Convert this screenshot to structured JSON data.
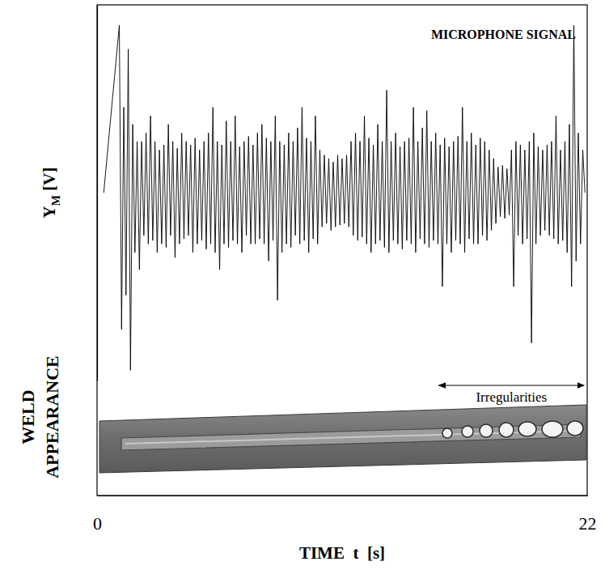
{
  "chart_data": {
    "type": "line",
    "title": "MICROPHONE SIGNAL",
    "x_label": "TIME  t  [s]",
    "y_label": "YM [V]",
    "side_label": "WELD APPEARANCE",
    "color": "#000000",
    "grid": false,
    "tick_labels": "x",
    "xlim": [
      0,
      22
    ],
    "xticks": [
      0,
      22
    ],
    "ylim": [
      -1.1,
      1.1
    ],
    "yticks": [],
    "annotations": [
      {
        "text": "Irregularities",
        "x_range": [
          15.3,
          21.9
        ]
      }
    ],
    "x": [
      0.3,
      1.0,
      1.1,
      1.2,
      1.3,
      1.4,
      1.5,
      1.6,
      1.7,
      1.8,
      1.9,
      2.0,
      2.1,
      2.2,
      2.3,
      2.4,
      2.5,
      2.6,
      2.7,
      2.8,
      2.9,
      3.0,
      3.1,
      3.2,
      3.3,
      3.4,
      3.5,
      3.6,
      3.7,
      3.8,
      3.9,
      4.0,
      4.1,
      4.2,
      4.3,
      4.4,
      4.5,
      4.6,
      4.7,
      4.8,
      4.9,
      5.0,
      5.1,
      5.2,
      5.3,
      5.4,
      5.5,
      5.6,
      5.7,
      5.8,
      5.9,
      6.0,
      6.1,
      6.2,
      6.3,
      6.4,
      6.5,
      6.6,
      6.7,
      6.8,
      6.9,
      7.0,
      7.1,
      7.2,
      7.3,
      7.4,
      7.5,
      7.6,
      7.7,
      7.8,
      7.9,
      8.0,
      8.1,
      8.2,
      8.3,
      8.4,
      8.5,
      8.6,
      8.7,
      8.8,
      8.9,
      9.0,
      9.1,
      9.2,
      9.3,
      9.4,
      9.5,
      9.6,
      9.7,
      9.8,
      9.9,
      10.0,
      10.1,
      10.2,
      10.3,
      10.4,
      10.5,
      10.6,
      10.7,
      10.8,
      10.9,
      11.0,
      11.1,
      11.2,
      11.3,
      11.4,
      11.5,
      11.6,
      11.7,
      11.8,
      11.9,
      12.0,
      12.1,
      12.2,
      12.3,
      12.4,
      12.5,
      12.6,
      12.7,
      12.8,
      12.9,
      13.0,
      13.1,
      13.2,
      13.3,
      13.4,
      13.5,
      13.6,
      13.7,
      13.8,
      13.9,
      14.0,
      14.1,
      14.2,
      14.3,
      14.4,
      14.5,
      14.6,
      14.7,
      14.8,
      14.9,
      15.0,
      15.1,
      15.2,
      15.3,
      15.4,
      15.5,
      15.6,
      15.7,
      15.8,
      15.9,
      16.0,
      16.1,
      16.2,
      16.3,
      16.4,
      16.5,
      16.6,
      16.7,
      16.8,
      16.9,
      17.0,
      17.1,
      17.2,
      17.3,
      17.4,
      17.5,
      17.6,
      17.7,
      17.8,
      17.9,
      18.0,
      18.1,
      18.2,
      18.3,
      18.4,
      18.5,
      18.6,
      18.7,
      18.8,
      18.9,
      19.0,
      19.1,
      19.2,
      19.3,
      19.4,
      19.5,
      19.6,
      19.7,
      19.8,
      19.9,
      20.0,
      20.1,
      20.2,
      20.3,
      20.4,
      20.5,
      20.6,
      20.7,
      20.8,
      20.9,
      21.0,
      21.1,
      21.2,
      21.3,
      21.4,
      21.5,
      21.6,
      21.7,
      21.8,
      21.9
    ],
    "values": [
      0,
      0.98,
      -0.8,
      0.5,
      -0.6,
      0.84,
      -1.04,
      0.4,
      -0.35,
      0.3,
      -0.45,
      0.3,
      -0.25,
      0.35,
      -0.3,
      0.45,
      -0.28,
      0.3,
      -0.35,
      0.25,
      -0.3,
      0.28,
      -0.32,
      0.4,
      -0.25,
      0.3,
      -0.38,
      0.26,
      -0.3,
      0.35,
      -0.27,
      0.3,
      -0.25,
      0.28,
      -0.35,
      0.32,
      -0.3,
      0.25,
      -0.28,
      0.3,
      -0.33,
      0.35,
      -0.3,
      0.5,
      -0.35,
      0.3,
      -0.45,
      0.28,
      -0.3,
      0.42,
      -0.32,
      0.3,
      -0.28,
      0.45,
      -0.3,
      0.27,
      -0.35,
      0.3,
      -0.25,
      0.33,
      -0.3,
      0.28,
      -0.3,
      0.35,
      -0.27,
      0.4,
      -0.3,
      0.32,
      -0.4,
      0.3,
      -0.28,
      0.45,
      -0.63,
      0.3,
      -0.35,
      0.28,
      -0.3,
      0.35,
      -0.32,
      0.3,
      -0.25,
      0.38,
      -0.3,
      0.5,
      -0.28,
      0.32,
      -0.35,
      0.3,
      -0.27,
      0.45,
      -0.3,
      0.25,
      -0.2,
      0.22,
      -0.18,
      0.2,
      -0.22,
      0.18,
      -0.2,
      0.22,
      -0.19,
      0.2,
      -0.18,
      0.22,
      -0.2,
      0.3,
      -0.25,
      0.35,
      -0.28,
      0.3,
      -0.26,
      0.45,
      -0.3,
      0.32,
      -0.35,
      0.28,
      -0.3,
      0.4,
      -0.28,
      0.3,
      -0.32,
      0.6,
      -0.35,
      0.3,
      -0.28,
      0.35,
      -0.3,
      0.27,
      -0.33,
      0.3,
      -0.28,
      0.32,
      -0.3,
      0.5,
      -0.35,
      0.3,
      -0.27,
      0.38,
      -0.3,
      0.48,
      -0.32,
      0.3,
      -0.28,
      0.35,
      -0.3,
      0.28,
      -0.55,
      0.32,
      -0.3,
      0.27,
      -0.35,
      0.3,
      -0.28,
      0.33,
      -0.3,
      0.5,
      -0.35,
      0.3,
      -0.27,
      0.35,
      -0.3,
      0.28,
      -0.3,
      0.32,
      -0.25,
      0.3,
      -0.28,
      0.25,
      -0.22,
      0.2,
      -0.18,
      0.15,
      -0.14,
      0.16,
      -0.15,
      0.14,
      -0.13,
      0.25,
      -0.55,
      0.3,
      -0.25,
      0.28,
      -0.3,
      0.25,
      -0.27,
      0.3,
      -0.88,
      0.35,
      -0.3,
      0.27,
      -0.25,
      0.25,
      -0.22,
      0.28,
      -0.25,
      0.3,
      -0.27,
      0.45,
      -0.3,
      0.25,
      -0.28,
      0.3,
      -0.35,
      0.4,
      -0.55,
      0.98,
      -0.4,
      0.35,
      -0.3,
      0.25,
      0
    ]
  }
}
